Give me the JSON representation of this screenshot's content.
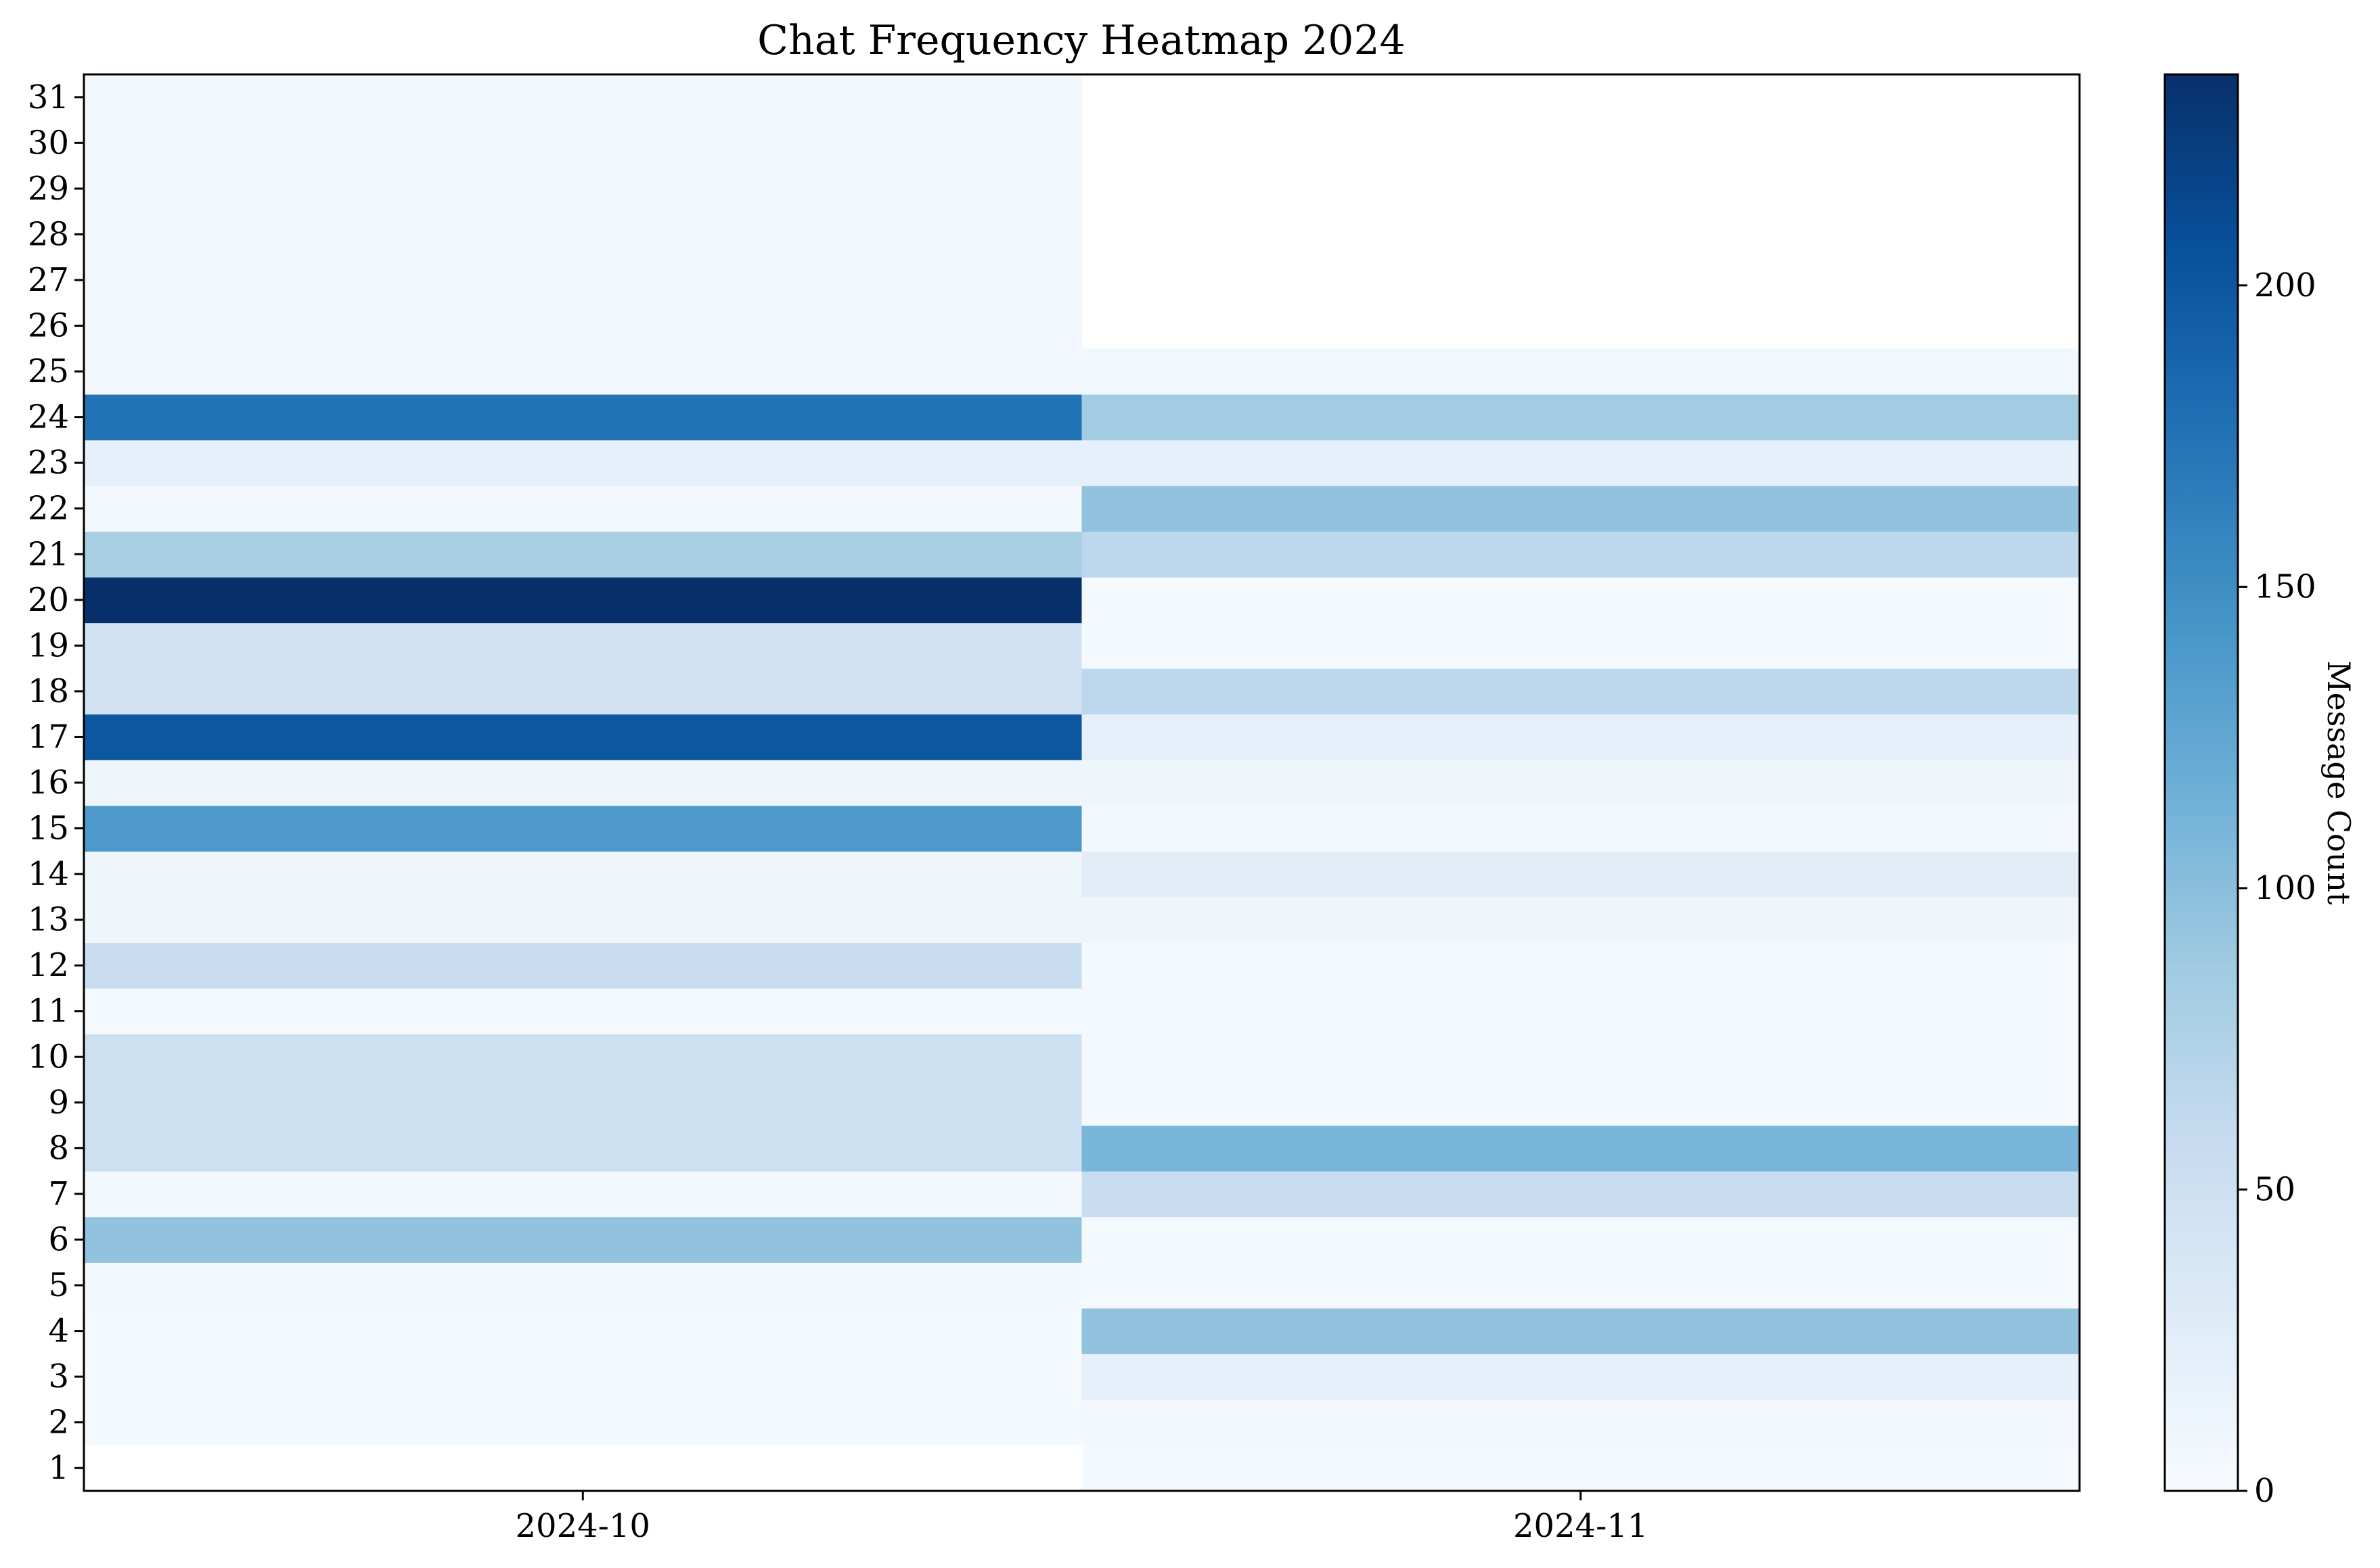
{
  "chart_data": {
    "type": "heatmap",
    "title": "Chat Frequency Heatmap 2024",
    "colormap": "Blues",
    "columns": [
      "2024-10",
      "2024-11"
    ],
    "rows": [
      "1",
      "2",
      "3",
      "4",
      "5",
      "6",
      "7",
      "8",
      "9",
      "10",
      "11",
      "12",
      "13",
      "14",
      "15",
      "16",
      "17",
      "18",
      "19",
      "20",
      "21",
      "22",
      "23",
      "24",
      "25",
      "26",
      "27",
      "28",
      "29",
      "30",
      "31"
    ],
    "values": [
      [
        null,
        4,
        4,
        4,
        5,
        95,
        5,
        50,
        50,
        50,
        4,
        55,
        10,
        10,
        140,
        10,
        200,
        45,
        45,
        235,
        80,
        5,
        20,
        175,
        5,
        5,
        5,
        5,
        5,
        5,
        5
      ],
      [
        4,
        5,
        20,
        95,
        4,
        4,
        55,
        110,
        4,
        4,
        4,
        4,
        10,
        25,
        5,
        10,
        20,
        65,
        4,
        4,
        65,
        95,
        20,
        85,
        8,
        null,
        null,
        null,
        null,
        null,
        null
      ]
    ],
    "colorbar": {
      "label": "Message Count",
      "range": [
        0,
        235
      ],
      "ticks": [
        "0",
        "50",
        "100",
        "150",
        "200"
      ]
    }
  }
}
